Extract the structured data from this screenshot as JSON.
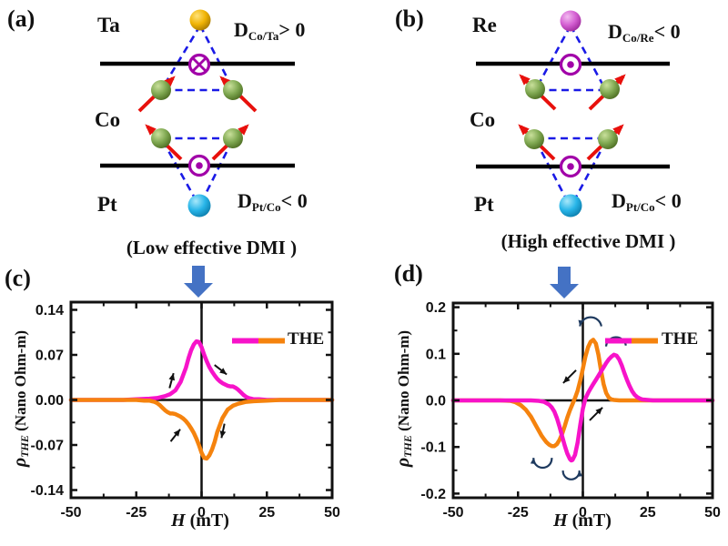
{
  "colors": {
    "magenta": "#F713C9",
    "orange": "#F5830E",
    "blue_arrow": "#4472C4",
    "spin_red": "#E8100C",
    "dash_blue": "#1A1AE6",
    "dmi_purple": "#A100A8",
    "arc_navy": "#1E3A5F",
    "axis_black": "#111111",
    "sphere_green": "#7FA851",
    "sphere_green_hi": "#C9E09B",
    "sphere_green_dark": "#4E6E23",
    "sphere_gold": "#F0B404",
    "sphere_gold_hi": "#FFE27A",
    "sphere_gold_dark": "#A87A00",
    "sphere_cyan": "#28B5E8",
    "sphere_cyan_hi": "#A8E8FA",
    "sphere_cyan_dark": "#0D7FAE",
    "sphere_orchid": "#D45FD2",
    "sphere_orchid_hi": "#F2BCF0",
    "sphere_orchid_dark": "#9E2B9C"
  },
  "panel_a": {
    "tag": "(a)",
    "layers": {
      "top": "Ta",
      "mid": "Co",
      "bottom": "Pt"
    },
    "dmi_top": {
      "main": "D",
      "sub": "Co/Ta",
      "rest": "> 0"
    },
    "dmi_bottom": {
      "main": "D",
      "sub": "Pt/Co",
      "rest": "< 0"
    },
    "caption": "(Low effective DMI )"
  },
  "panel_b": {
    "tag": "(b)",
    "layers": {
      "top": "Re",
      "mid": "Co",
      "bottom": "Pt"
    },
    "dmi_top": {
      "main": "D",
      "sub": "Co/Re",
      "rest": "< 0"
    },
    "dmi_bottom": {
      "main": "D",
      "sub": "Pt/Co",
      "rest": "< 0"
    },
    "caption": "(High effective DMI )"
  },
  "chart_data": [
    {
      "type": "line",
      "tag": "(c)",
      "xlabel": {
        "italic": "H",
        "rest": " (mT)"
      },
      "ylabel": {
        "sym": "ρ",
        "sub": "THE",
        "rest": " (Nano Ohm-m)"
      },
      "xlim": [
        -50,
        50
      ],
      "ylim": [
        -0.152,
        0.152
      ],
      "xticks": [
        {
          "v": -50,
          "l": "-50"
        },
        {
          "v": -25,
          "l": "-25"
        },
        {
          "v": 0,
          "l": "0"
        },
        {
          "v": 25,
          "l": "25"
        },
        {
          "v": 50,
          "l": "50"
        }
      ],
      "yticks": [
        {
          "v": 0.14,
          "l": "0.14"
        },
        {
          "v": 0.07,
          "l": "0.07"
        },
        {
          "v": 0,
          "l": "0.00"
        },
        {
          "v": -0.07,
          "l": "-0.07"
        },
        {
          "v": -0.14,
          "l": "-0.14"
        }
      ],
      "xminor": [
        -37.5,
        -12.5,
        12.5,
        37.5
      ],
      "yminor": [
        -0.105,
        -0.035,
        0.035,
        0.105
      ],
      "legend": {
        "label": "THE"
      },
      "grid": false,
      "series": [
        {
          "name": "THE",
          "color": "#F713C9",
          "points": [
            [
              -50,
              0
            ],
            [
              -45,
              0
            ],
            [
              -40,
              0
            ],
            [
              -35,
              0
            ],
            [
              -30,
              0
            ],
            [
              -25,
              0.001
            ],
            [
              -20,
              0.002
            ],
            [
              -17,
              0.003
            ],
            [
              -14,
              0.006
            ],
            [
              -12,
              0.009
            ],
            [
              -10,
              0.015
            ],
            [
              -8,
              0.028
            ],
            [
              -6,
              0.05
            ],
            [
              -5,
              0.065
            ],
            [
              -4,
              0.077
            ],
            [
              -3,
              0.086
            ],
            [
              -2,
              0.091
            ],
            [
              -1,
              0.09
            ],
            [
              0,
              0.082
            ],
            [
              1,
              0.07
            ],
            [
              2,
              0.06
            ],
            [
              3,
              0.051
            ],
            [
              4,
              0.044
            ],
            [
              5,
              0.038
            ],
            [
              6,
              0.033
            ],
            [
              7,
              0.029
            ],
            [
              8,
              0.026
            ],
            [
              9,
              0.024
            ],
            [
              10,
              0.022
            ],
            [
              11,
              0.021
            ],
            [
              12,
              0.021
            ],
            [
              13,
              0.019
            ],
            [
              14,
              0.016
            ],
            [
              15,
              0.012
            ],
            [
              16,
              0.008
            ],
            [
              17,
              0.005
            ],
            [
              18,
              0.003
            ],
            [
              19,
              0.002
            ],
            [
              20,
              0.001
            ],
            [
              22,
              0.001
            ],
            [
              25,
              0
            ],
            [
              30,
              0
            ],
            [
              35,
              0
            ],
            [
              40,
              0
            ],
            [
              45,
              0
            ],
            [
              50,
              0
            ]
          ]
        },
        {
          "name": "THE",
          "color": "#F5830E",
          "points": [
            [
              -50,
              0
            ],
            [
              -40,
              0
            ],
            [
              -30,
              0
            ],
            [
              -25,
              0
            ],
            [
              -22,
              -0.001
            ],
            [
              -20,
              -0.001
            ],
            [
              -19,
              -0.002
            ],
            [
              -18,
              -0.003
            ],
            [
              -17,
              -0.005
            ],
            [
              -16,
              -0.008
            ],
            [
              -15,
              -0.012
            ],
            [
              -14,
              -0.016
            ],
            [
              -13,
              -0.019
            ],
            [
              -12,
              -0.021
            ],
            [
              -11,
              -0.021
            ],
            [
              -10,
              -0.022
            ],
            [
              -9,
              -0.024
            ],
            [
              -8,
              -0.026
            ],
            [
              -7,
              -0.029
            ],
            [
              -6,
              -0.033
            ],
            [
              -5,
              -0.038
            ],
            [
              -4,
              -0.044
            ],
            [
              -3,
              -0.051
            ],
            [
              -2,
              -0.06
            ],
            [
              -1,
              -0.07
            ],
            [
              0,
              -0.082
            ],
            [
              1,
              -0.09
            ],
            [
              2,
              -0.091
            ],
            [
              3,
              -0.086
            ],
            [
              4,
              -0.077
            ],
            [
              5,
              -0.065
            ],
            [
              6,
              -0.05
            ],
            [
              8,
              -0.028
            ],
            [
              10,
              -0.015
            ],
            [
              12,
              -0.009
            ],
            [
              14,
              -0.006
            ],
            [
              17,
              -0.003
            ],
            [
              20,
              -0.002
            ],
            [
              25,
              -0.001
            ],
            [
              30,
              0
            ],
            [
              40,
              0
            ],
            [
              50,
              0
            ]
          ]
        }
      ],
      "annotations": [
        {
          "type": "arrow",
          "x": -11.5,
          "y": 0.03,
          "angle": 75,
          "len": 17
        },
        {
          "type": "arrow",
          "x": 7.3,
          "y": 0.047,
          "angle": -38,
          "len": 17
        },
        {
          "type": "arrow",
          "x": -10,
          "y": -0.055,
          "angle": 52,
          "len": 17
        },
        {
          "type": "arrow",
          "x": 8.2,
          "y": -0.048,
          "angle": -102,
          "len": 16
        }
      ]
    },
    {
      "type": "line",
      "tag": "(d)",
      "xlabel": {
        "italic": "H",
        "rest": " (mT)"
      },
      "ylabel": {
        "sym": "ρ",
        "sub": "THE",
        "rest": " (Nano Ohm-m)"
      },
      "xlim": [
        -50,
        50
      ],
      "ylim": [
        -0.209,
        0.209
      ],
      "xticks": [
        {
          "v": -50,
          "l": "-50"
        },
        {
          "v": -25,
          "l": "-25"
        },
        {
          "v": 0,
          "l": "0"
        },
        {
          "v": 25,
          "l": "25"
        },
        {
          "v": 50,
          "l": "50"
        }
      ],
      "yticks": [
        {
          "v": 0.2,
          "l": "0.2"
        },
        {
          "v": 0.1,
          "l": "0.1"
        },
        {
          "v": 0,
          "l": "0.0"
        },
        {
          "v": -0.1,
          "l": "-0.1"
        },
        {
          "v": -0.2,
          "l": "-0.2"
        }
      ],
      "xminor": [
        -37.5,
        -12.5,
        12.5,
        37.5
      ],
      "yminor": [
        -0.15,
        -0.05,
        0.05,
        0.15
      ],
      "legend": {
        "label": "THE"
      },
      "grid": false,
      "series": [
        {
          "name": "THE",
          "color": "#F5830E",
          "points": [
            [
              -50,
              0
            ],
            [
              -40,
              0
            ],
            [
              -32,
              0
            ],
            [
              -28,
              -0.001
            ],
            [
              -26,
              -0.004
            ],
            [
              -24,
              -0.01
            ],
            [
              -22,
              -0.02
            ],
            [
              -20,
              -0.035
            ],
            [
              -18,
              -0.055
            ],
            [
              -16,
              -0.075
            ],
            [
              -15,
              -0.083
            ],
            [
              -14,
              -0.09
            ],
            [
              -13,
              -0.095
            ],
            [
              -12,
              -0.098
            ],
            [
              -11,
              -0.098
            ],
            [
              -10,
              -0.094
            ],
            [
              -9,
              -0.085
            ],
            [
              -8,
              -0.072
            ],
            [
              -7,
              -0.055
            ],
            [
              -6,
              -0.037
            ],
            [
              -5,
              -0.021
            ],
            [
              -4,
              -0.008
            ],
            [
              -3,
              0.005
            ],
            [
              -2,
              0.021
            ],
            [
              -1,
              0.043
            ],
            [
              0,
              0.068
            ],
            [
              1,
              0.094
            ],
            [
              2,
              0.114
            ],
            [
              3,
              0.126
            ],
            [
              4,
              0.13
            ],
            [
              5,
              0.122
            ],
            [
              6,
              0.098
            ],
            [
              7,
              0.065
            ],
            [
              8,
              0.035
            ],
            [
              9,
              0.016
            ],
            [
              10,
              0.006
            ],
            [
              11,
              0.002
            ],
            [
              12,
              0.001
            ],
            [
              14,
              0
            ],
            [
              18,
              0
            ],
            [
              25,
              0
            ],
            [
              35,
              0
            ],
            [
              50,
              0
            ]
          ]
        },
        {
          "name": "THE",
          "color": "#F713C9",
          "points": [
            [
              -50,
              0
            ],
            [
              -40,
              0
            ],
            [
              -30,
              0
            ],
            [
              -25,
              0
            ],
            [
              -20,
              0
            ],
            [
              -17,
              -0.001
            ],
            [
              -15,
              -0.003
            ],
            [
              -13,
              -0.009
            ],
            [
              -12,
              -0.015
            ],
            [
              -11,
              -0.024
            ],
            [
              -10,
              -0.038
            ],
            [
              -9,
              -0.056
            ],
            [
              -8,
              -0.077
            ],
            [
              -7,
              -0.097
            ],
            [
              -6,
              -0.114
            ],
            [
              -5,
              -0.126
            ],
            [
              -4.5,
              -0.129
            ],
            [
              -4,
              -0.128
            ],
            [
              -3,
              -0.117
            ],
            [
              -2,
              -0.09
            ],
            [
              -1,
              -0.052
            ],
            [
              0,
              -0.018
            ],
            [
              1,
              0.004
            ],
            [
              2,
              0.016
            ],
            [
              3,
              0.026
            ],
            [
              4,
              0.035
            ],
            [
              5,
              0.044
            ],
            [
              6,
              0.053
            ],
            [
              7,
              0.062
            ],
            [
              8,
              0.071
            ],
            [
              9,
              0.08
            ],
            [
              10,
              0.088
            ],
            [
              11,
              0.094
            ],
            [
              12,
              0.098
            ],
            [
              13,
              0.096
            ],
            [
              14,
              0.088
            ],
            [
              15,
              0.075
            ],
            [
              16,
              0.059
            ],
            [
              17,
              0.044
            ],
            [
              18,
              0.031
            ],
            [
              19,
              0.02
            ],
            [
              20,
              0.012
            ],
            [
              21,
              0.007
            ],
            [
              22,
              0.004
            ],
            [
              23,
              0.002
            ],
            [
              25,
              0.001
            ],
            [
              27,
              0
            ],
            [
              30,
              0
            ],
            [
              40,
              0
            ],
            [
              50,
              0
            ]
          ]
        }
      ],
      "annotations": [
        {
          "type": "arrow",
          "x": -5.1,
          "y": 0.051,
          "angle": -135,
          "len": 20
        },
        {
          "type": "arrow",
          "x": 5.1,
          "y": -0.029,
          "angle": 45,
          "len": 20
        },
        {
          "type": "arc",
          "x": 3,
          "y": 0.155,
          "r": 12,
          "start": 350,
          "end": 190,
          "sweep": 0,
          "large": 0
        },
        {
          "type": "arc",
          "x": 12.8,
          "y": 0.114,
          "r": 11,
          "start": 185,
          "end": 350,
          "sweep": 1,
          "large": 0
        },
        {
          "type": "arc",
          "x": -15.5,
          "y": -0.125,
          "r": 10,
          "start": 355,
          "end": 185,
          "sweep": 1,
          "large": 1
        },
        {
          "type": "arc",
          "x": -4.5,
          "y": -0.152,
          "r": 9,
          "start": 185,
          "end": 355,
          "sweep": 0,
          "large": 1
        }
      ]
    }
  ]
}
